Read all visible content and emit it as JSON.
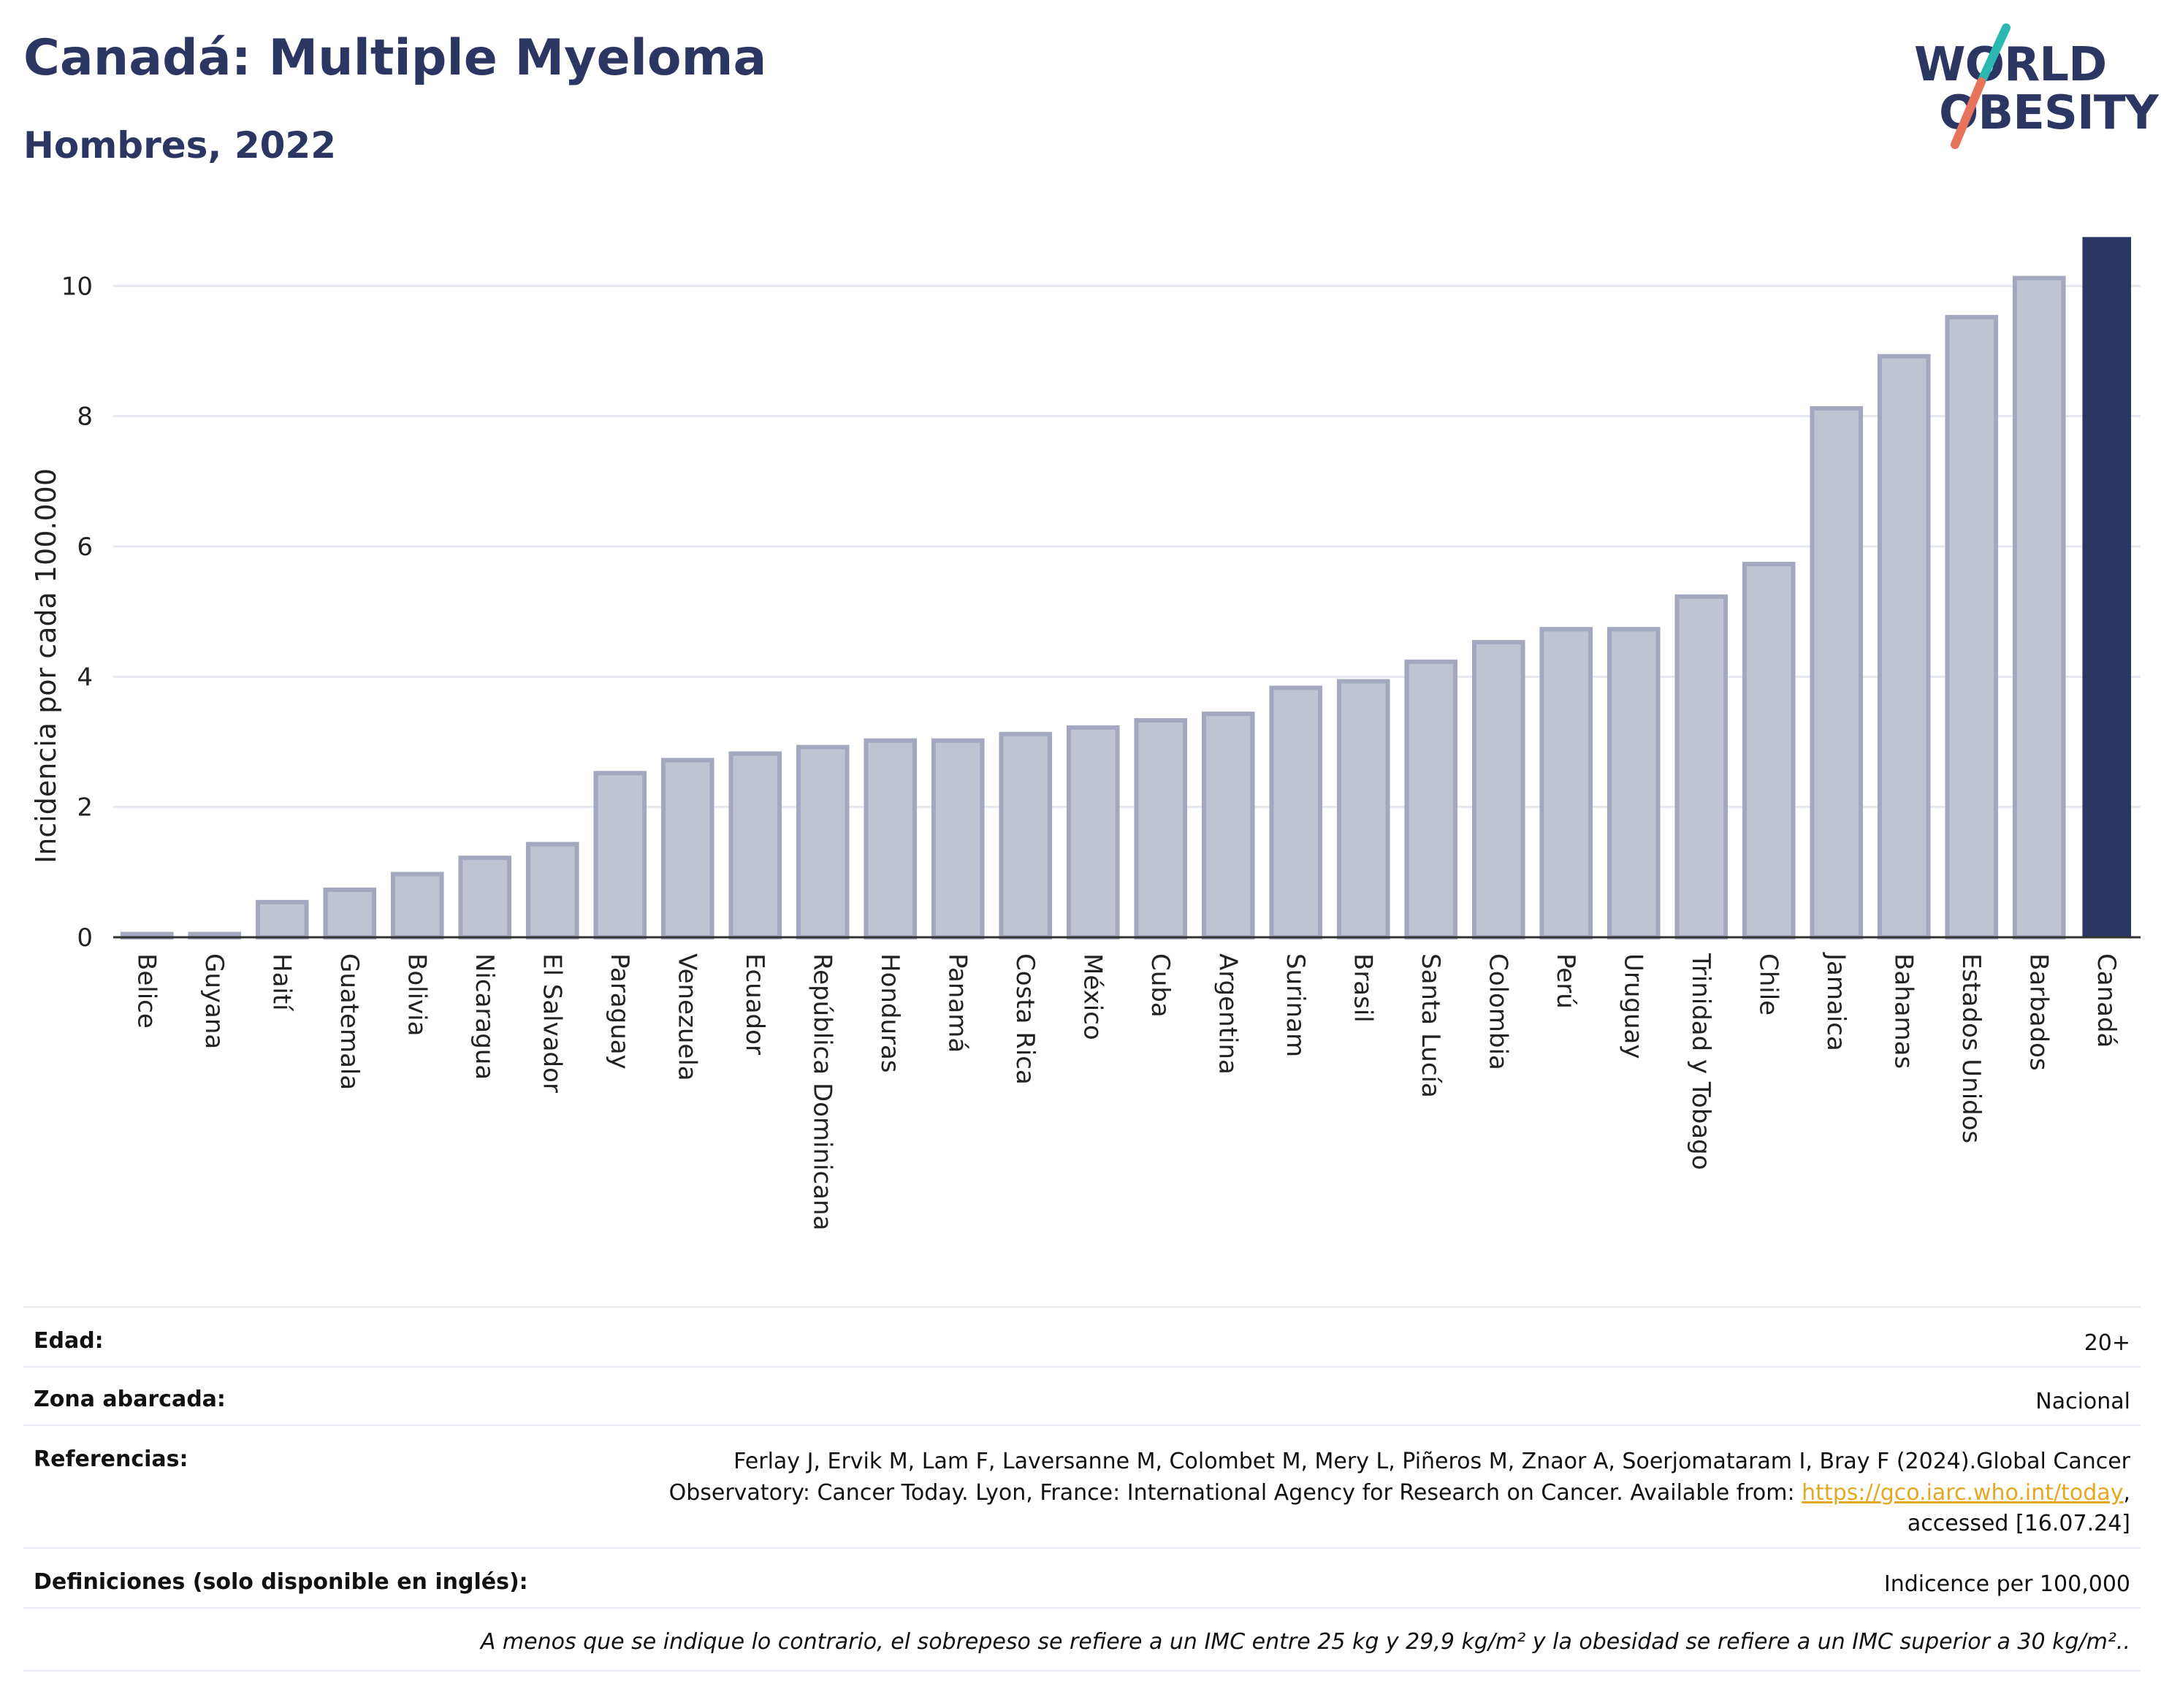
{
  "header": {
    "title": "Canadá: Multiple Myeloma",
    "subtitle": "Hombres, 2022"
  },
  "logo": {
    "line1": "WORLD",
    "line2": "OBESITY",
    "colors": {
      "text": "#2b3663",
      "slash_top": "#2bb7b2",
      "slash_bottom": "#e8735c"
    }
  },
  "chart_data": {
    "type": "bar",
    "ylabel": "Incidencia por cada 100.000",
    "ylim": [
      0,
      10.8
    ],
    "yticks": [
      0,
      2,
      4,
      6,
      8,
      10
    ],
    "grid": true,
    "highlight": "Canadá",
    "colors": {
      "bar": "#c0c3d1",
      "bar_border": "#a3a7bf",
      "highlight": "#2b3663",
      "grid": "#e6e8ef"
    },
    "categories": [
      "Belice",
      "Guyana",
      "Haití",
      "Guatemala",
      "Bolivia",
      "Nicaragua",
      "El Salvador",
      "Paraguay",
      "Venezuela",
      "Ecuador",
      "República Dominicana",
      "Honduras",
      "Panamá",
      "Costa Rica",
      "México",
      "Cuba",
      "Argentina",
      "Surinam",
      "Brasil",
      "Santa Lucía",
      "Colombia",
      "Perú",
      "Uruguay",
      "Trinidad y Tobago",
      "Chile",
      "Jamaica",
      "Bahamas",
      "Estados Unidos",
      "Barbados",
      "Canadá"
    ],
    "values": [
      0.05,
      0.05,
      0.54,
      0.73,
      0.97,
      1.22,
      1.43,
      2.52,
      2.72,
      2.82,
      2.92,
      3.02,
      3.02,
      3.12,
      3.22,
      3.33,
      3.43,
      3.83,
      3.93,
      4.23,
      4.53,
      4.73,
      4.73,
      5.23,
      5.73,
      8.12,
      8.92,
      9.52,
      10.12,
      10.75
    ]
  },
  "meta": {
    "edad_label": "Edad:",
    "edad_value": "20+",
    "zona_label": "Zona abarcada:",
    "zona_value": "Nacional",
    "ref_label": "Referencias:",
    "ref_line1": "Ferlay J, Ervik M, Lam F, Laversanne M, Colombet M, Mery L, Piñeros M, Znaor A, Soerjomataram I, Bray F (2024).Global Cancer",
    "ref_line2_pre": "Observatory: Cancer Today. Lyon, France: International Agency for Research on Cancer. Available from: ",
    "ref_link": "https://gco.iarc.who.int/today",
    "ref_line2_post": ",",
    "ref_line3": "accessed [16.07.24]",
    "def_label": "Definiciones (solo disponible en inglés):",
    "def_value": "Indicence per 100,000",
    "note": "A menos que se indique lo contrario, el sobrepeso se refiere a un IMC entre 25 kg y 29,9 kg/m² y la obesidad se refiere a un IMC superior a 30 kg/m².."
  }
}
